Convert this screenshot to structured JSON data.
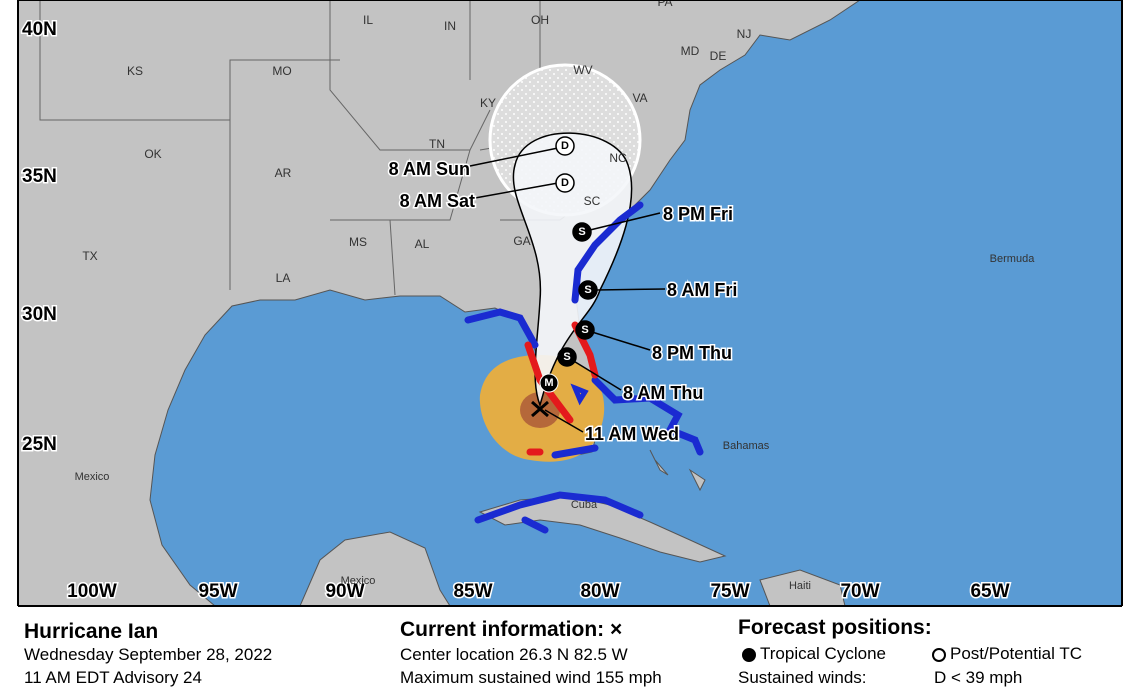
{
  "map": {
    "lat_labels": [
      "40N",
      "35N",
      "30N",
      "25N"
    ],
    "lon_labels": [
      "100W",
      "95W",
      "90W",
      "85W",
      "80W",
      "75W",
      "70W",
      "65W"
    ],
    "state_labels": [
      "KS",
      "MO",
      "IL",
      "IN",
      "OH",
      "PA",
      "WV",
      "VA",
      "KY",
      "TN",
      "NC",
      "SC",
      "GA",
      "AL",
      "MS",
      "AR",
      "OK",
      "TX",
      "LA",
      "NJ",
      "MD",
      "DE"
    ],
    "place_labels": [
      "Mexico",
      "Mexico",
      "Cuba",
      "Bahamas",
      "Bermuda",
      "Haiti"
    ],
    "forecast_points": [
      {
        "label": "8 AM Sun",
        "symbol": "D"
      },
      {
        "label": "8 AM Sat",
        "symbol": "D"
      },
      {
        "label": "8 PM Fri",
        "symbol": "S"
      },
      {
        "label": "8 AM Fri",
        "symbol": "S"
      },
      {
        "label": "8 PM Thu",
        "symbol": "S"
      },
      {
        "label": "8 AM Thu",
        "symbol": "S"
      }
    ],
    "extra_symbol": "M",
    "current_label": "11 AM Wed"
  },
  "info": {
    "title": "Hurricane Ian",
    "date": "Wednesday September 28, 2022",
    "advisory": "11 AM EDT Advisory 24",
    "current_heading": "Current information: ×",
    "center": "Center location 26.3 N 82.5 W",
    "max_wind": "Maximum sustained wind 155 mph",
    "forecast_heading": "Forecast positions:",
    "legend_tc": "Tropical Cyclone",
    "legend_post": "Post/Potential TC",
    "sustained": "Sustained winds:",
    "d_def": "D < 39 mph"
  }
}
